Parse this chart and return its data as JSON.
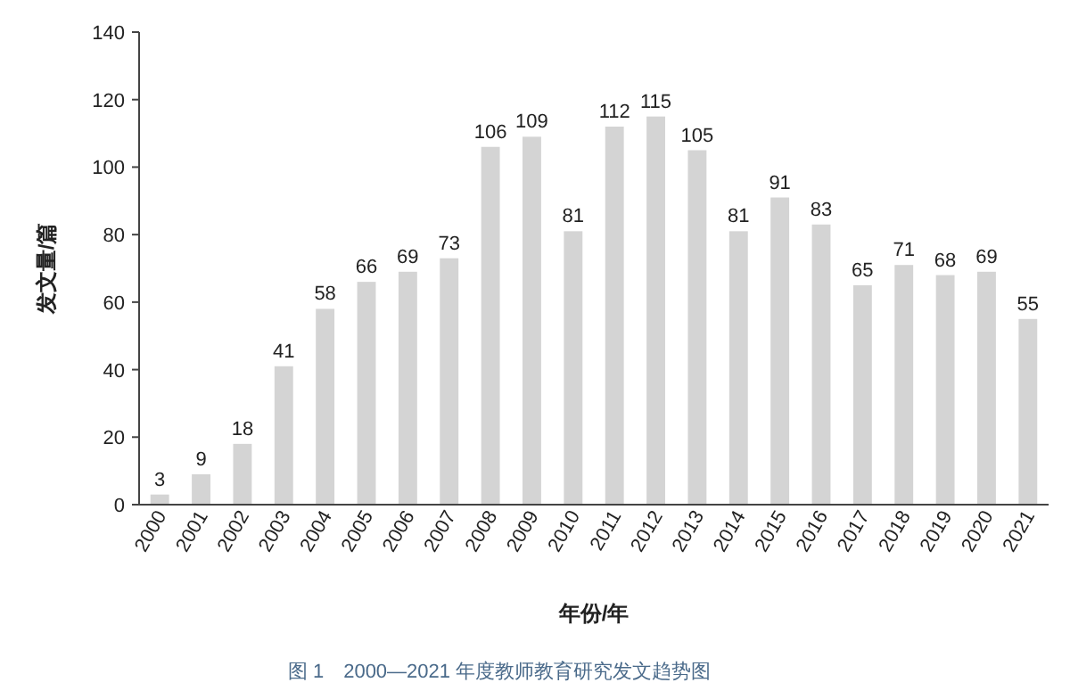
{
  "chart_data": {
    "type": "bar",
    "categories": [
      "2000",
      "2001",
      "2002",
      "2003",
      "2004",
      "2005",
      "2006",
      "2007",
      "2008",
      "2009",
      "2010",
      "2011",
      "2012",
      "2013",
      "2014",
      "2015",
      "2016",
      "2017",
      "2018",
      "2019",
      "2020",
      "2021"
    ],
    "values": [
      3,
      9,
      18,
      41,
      58,
      66,
      69,
      73,
      106,
      109,
      81,
      112,
      115,
      105,
      81,
      91,
      83,
      65,
      71,
      68,
      69,
      55
    ],
    "color": "#d4d4d4",
    "ylim": [
      0,
      140
    ],
    "yticks": [
      0,
      20,
      40,
      60,
      80,
      100,
      120,
      140
    ],
    "xlabel": "年份/年",
    "ylabel": "发文量/篇",
    "data_labels": true,
    "annotations": [
      "图 1　2000—2021 年度教师教育研究发文趋势图"
    ]
  }
}
